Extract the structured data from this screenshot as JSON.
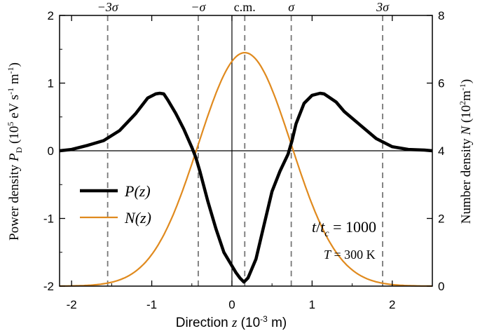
{
  "chart_data": {
    "type": "line",
    "xlabel": {
      "text": "Direction ",
      "var": "z",
      "unit_open": " (10",
      "unit_exp": "-3",
      "unit_close": " m)"
    },
    "ylabel_left": {
      "text": "Power density ",
      "var": "P",
      "sub": "D",
      "unit_open": " (10",
      "unit_exp": "5",
      "unit_mid": " eV s",
      "unit_exp2": "-1",
      "unit_mid2": " m",
      "unit_exp3": "-1",
      "unit_close": ")"
    },
    "ylabel_right": {
      "text": "Number density ",
      "var": "N",
      "unit_open": " (10",
      "unit_exp": "2",
      "unit_mid": "m",
      "unit_exp2": "-1",
      "unit_close": ")"
    },
    "xlim": [
      -2.15,
      2.5
    ],
    "ylim_left": [
      -2,
      2
    ],
    "ylim_right": [
      0,
      8
    ],
    "x_ticks": [
      -2,
      -1,
      0,
      1,
      2
    ],
    "x_tick_labels": [
      "-2",
      "-1",
      "0",
      "1",
      "2"
    ],
    "y_left_ticks": [
      -2,
      -1,
      0,
      1,
      2
    ],
    "y_left_tick_labels": [
      "-2",
      "-1",
      "0",
      "1",
      "2"
    ],
    "y_right_ticks": [
      0,
      2,
      4,
      6,
      8
    ],
    "y_right_tick_labels": [
      "0",
      "2",
      "4",
      "6",
      "8"
    ],
    "vlines": [
      {
        "x": -1.55,
        "label": "−3σ"
      },
      {
        "x": -0.42,
        "label": "−σ"
      },
      {
        "x": 0.16,
        "label": "c.m."
      },
      {
        "x": 0.74,
        "label": "σ"
      },
      {
        "x": 1.88,
        "label": "3σ"
      }
    ],
    "series": [
      {
        "name": "P(z)",
        "color": "#000000",
        "axis": "left",
        "x": [
          -2.15,
          -2.0,
          -1.8,
          -1.6,
          -1.4,
          -1.2,
          -1.05,
          -0.95,
          -0.9,
          -0.85,
          -0.8,
          -0.7,
          -0.6,
          -0.5,
          -0.45,
          -0.4,
          -0.3,
          -0.2,
          -0.1,
          0.0,
          0.05,
          0.1,
          0.15,
          0.2,
          0.3,
          0.4,
          0.5,
          0.6,
          0.7,
          0.75,
          0.8,
          0.9,
          1.0,
          1.1,
          1.15,
          1.2,
          1.3,
          1.4,
          1.6,
          1.8,
          2.0,
          2.2,
          2.4,
          2.5
        ],
        "values": [
          0.0,
          0.02,
          0.08,
          0.15,
          0.3,
          0.55,
          0.78,
          0.84,
          0.85,
          0.84,
          0.75,
          0.55,
          0.32,
          0.05,
          -0.1,
          -0.3,
          -0.75,
          -1.15,
          -1.5,
          -1.7,
          -1.8,
          -1.88,
          -1.94,
          -1.88,
          -1.6,
          -1.1,
          -0.6,
          -0.3,
          -0.05,
          0.15,
          0.4,
          0.7,
          0.82,
          0.85,
          0.84,
          0.8,
          0.72,
          0.58,
          0.38,
          0.18,
          0.06,
          0.02,
          0.01,
          0.0
        ]
      },
      {
        "name": "N(z)",
        "color": "#e08a1e",
        "axis": "right",
        "gaussian": {
          "amplitude": 6.9,
          "center": 0.16,
          "sigma": 0.58
        }
      }
    ],
    "legend_position": "left-lower",
    "legend": [
      {
        "var": "P",
        "arg": "(z)"
      },
      {
        "var": "N",
        "arg": "(z)"
      }
    ],
    "annotations": [
      {
        "id": "ratio",
        "v1": "t",
        "slash": "/",
        "v2": "t",
        "sub": "c",
        "eq": " = 1000"
      },
      {
        "id": "temp",
        "v1": "T",
        "eq": " = 300 K"
      }
    ]
  }
}
